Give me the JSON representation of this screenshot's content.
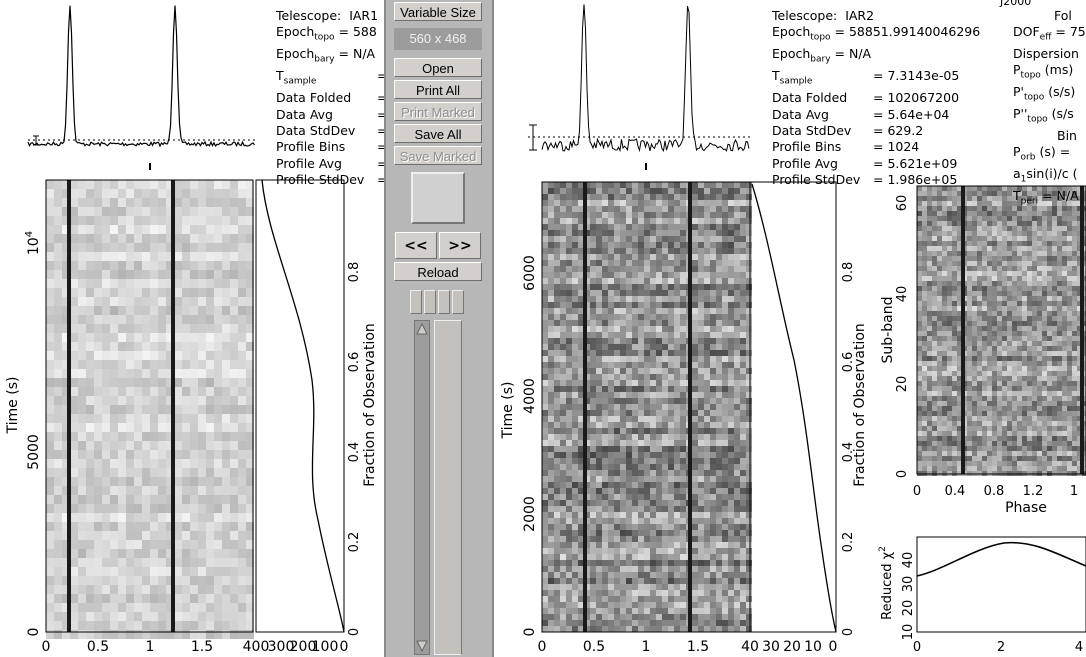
{
  "panel": {
    "variable_size_label": "Variable Size",
    "size_readout": "560 x 468",
    "open_label": "Open",
    "print_all_label": "Print All",
    "print_marked_label": "Print Marked",
    "save_all_label": "Save All",
    "save_marked_label": "Save Marked",
    "prev_label": "<<",
    "next_label": ">>",
    "reload_label": "Reload"
  },
  "left": {
    "telescope_label": "Telescope:",
    "telescope_value": "IAR1",
    "epoch_topo_label": "Epoch",
    "epoch_topo_sub": "topo",
    "epoch_topo_value": "= 588",
    "epoch_bary_label": "Epoch",
    "epoch_bary_sub": "bary",
    "epoch_bary_value": "= N/A",
    "t_sample_label": "T",
    "t_sample_sub": "sample",
    "data_folded_label": "Data Folded",
    "data_avg_label": "Data Avg",
    "data_stddev_label": "Data StdDev",
    "profile_bins_label": "Profile Bins",
    "profile_avg_label": "Profile Avg",
    "profile_stddev_label": "Profile StdDev",
    "eq": "=",
    "ylabel": "Time (s)",
    "y2label": "Fraction of Observation",
    "xticks": [
      "0",
      "0.5",
      "1",
      "1.5"
    ],
    "yticks": [
      "0",
      "5000"
    ],
    "y10": "10",
    "y10_exp": "4",
    "fracticks": [
      "0",
      "0.2",
      "0.4",
      "0.6",
      "0.8"
    ],
    "chi_xticks": [
      "400",
      "300",
      "200",
      "100",
      "0"
    ]
  },
  "right": {
    "telescope_label": "Telescope:",
    "telescope_value": "IAR2",
    "epoch_topo_label": "Epoch",
    "epoch_topo_sub": "topo",
    "epoch_topo_value": "= 58851.99140046296",
    "epoch_bary_label": "Epoch",
    "epoch_bary_sub": "bary",
    "epoch_bary_value": "= N/A",
    "t_sample_label": "T",
    "t_sample_sub": "sample",
    "t_sample_value": "= 7.3143e-05",
    "data_folded_label": "Data Folded",
    "data_folded_value": "= 102067200",
    "data_avg_label": "Data Avg",
    "data_avg_value": "= 5.64e+04",
    "data_stddev_label": "Data StdDev",
    "data_stddev_value": "= 629.2",
    "profile_bins_label": "Profile Bins",
    "profile_bins_value": "= 1024",
    "profile_avg_label": "Profile Avg",
    "profile_avg_value": "= 5.621e+09",
    "profile_stddev_label": "Profile StdDev",
    "profile_stddev_value": "= 1.986e+05",
    "dof_label": "DOF",
    "dof_sub": "eff",
    "dof_value": "= 75",
    "dispersion_label": "Dispersion",
    "ptopo_label": "P",
    "ptopo_sub": "topo",
    "ptopo_unit": "(ms)",
    "pdot_label": "P'",
    "pdot_sub": "topo",
    "pdot_unit": "(s/s)",
    "pddot_label": "P''",
    "pddot_sub": "topo",
    "pddot_unit": "(s/s",
    "bin_label": "Bin",
    "porb_label": "P",
    "porb_sub": "orb",
    "porb_unit": "(s) =",
    "asini_label": "a",
    "asini_sub": "1",
    "asini_text": "sin(i)/c (",
    "tperi_label": "T",
    "tperi_sub": "peri",
    "tperi_value": "= N/A",
    "fold_label": "Fol",
    "j2000_label": "J2000",
    "ylabel": "Time (s)",
    "y2label": "Fraction of Observation",
    "xticks": [
      "0",
      "0.5",
      "1",
      "1.5"
    ],
    "yticks": [
      "0",
      "2000",
      "4000",
      "6000"
    ],
    "fracticks": [
      "0",
      "0.2",
      "0.4",
      "0.6",
      "0.8"
    ],
    "chi_xticks": [
      "40",
      "30",
      "20",
      "10",
      "0"
    ],
    "subband_label": "Sub-band",
    "subband_yticks": [
      "0",
      "20",
      "40",
      "60"
    ],
    "phase_label": "Phase",
    "phase_xticks": [
      "0",
      "0.4",
      "0.8",
      "1.2",
      "1"
    ],
    "redchi_label": "Reduced χ",
    "redchi_exp": "2",
    "redchi_yticks": [
      "10",
      "20",
      "30",
      "40"
    ],
    "redchi_xticks": [
      "0",
      "2",
      "4"
    ]
  }
}
